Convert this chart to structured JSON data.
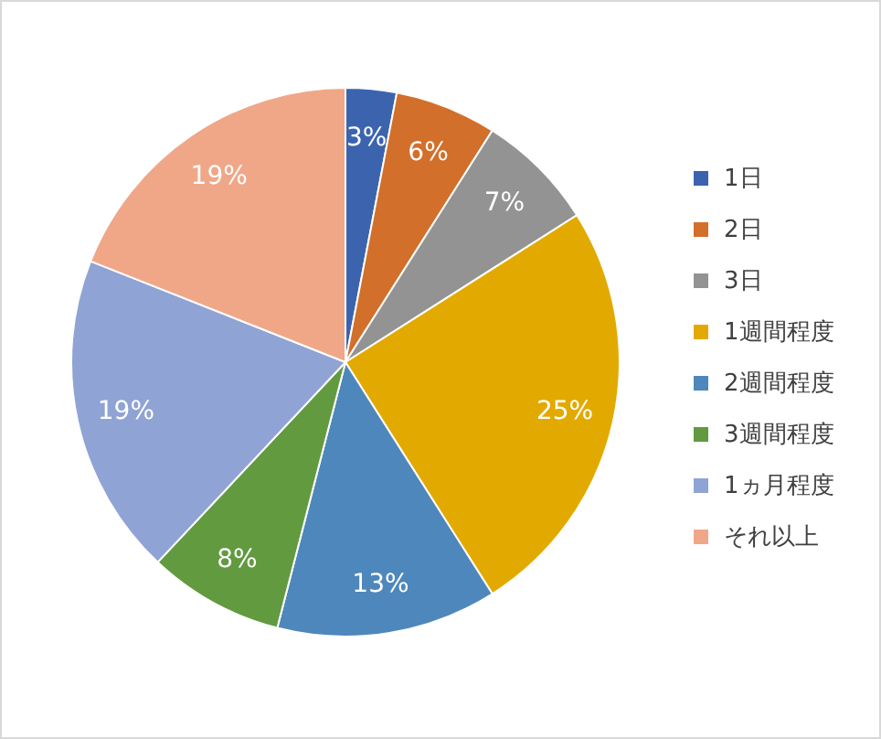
{
  "chart_data": {
    "type": "pie",
    "categories": [
      "1日",
      "2日",
      "3日",
      "1週間程度",
      "2週間程度",
      "3週間程度",
      "1ヵ月程度",
      "それ以上"
    ],
    "values": [
      3,
      6,
      7,
      25,
      13,
      8,
      19,
      19
    ],
    "value_labels": [
      "3%",
      "6%",
      "7%",
      "25%",
      "13%",
      "8%",
      "19%",
      "19%"
    ],
    "colors": [
      "#3c64ae",
      "#d26f2b",
      "#939393",
      "#e2aa00",
      "#4e87bb",
      "#629a40",
      "#8fa3d4",
      "#f0a788"
    ],
    "legend": "right"
  }
}
